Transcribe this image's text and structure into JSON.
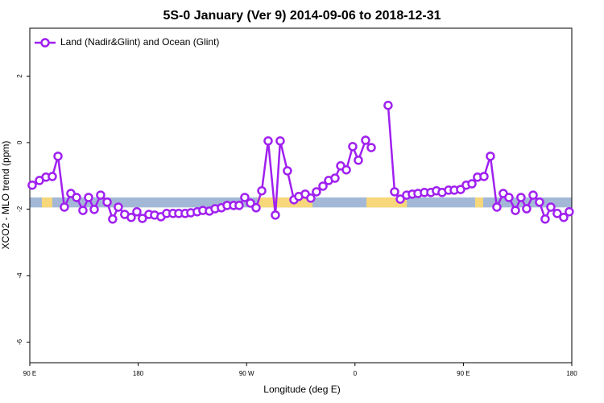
{
  "chart_data": {
    "type": "line",
    "title": "5S-0 January (Ver 9)   2014-09-06 to 2018-12-31",
    "x_label": "Longitude (deg E)",
    "y_label": "XCO2 - MLO trend (ppm)",
    "legend": "top-left",
    "x": [
      92.0,
      98.0,
      103.4,
      108.7,
      113.4,
      118.7,
      124.1,
      128.8,
      134.1,
      138.8,
      143.5,
      148.8,
      154.2,
      158.8,
      163.5,
      168.8,
      174.2,
      178.9,
      183.5,
      188.9,
      193.6,
      198.9,
      203.6,
      208.9,
      213.7,
      219.0,
      223.7,
      229.0,
      233.7,
      239.1,
      243.8,
      249.1,
      253.8,
      259.2,
      263.8,
      268.5,
      273.2,
      277.9,
      282.6,
      287.9,
      293.9,
      297.9,
      303.9,
      309.3,
      313.3,
      318.7,
      323.3,
      328.0,
      333.4,
      338.1,
      343.4,
      348.1,
      352.8,
      358.1,
      362.8,
      368.8,
      373.5,
      380.5,
      387.5,
      392.9,
      397.6,
      402.9,
      407.6,
      412.3,
      417.6,
      423.0,
      427.6,
      432.3,
      437.7,
      442.4,
      447.7,
      452.4,
      457.1,
      461.7,
      467.1,
      472.4,
      477.8,
      483.1,
      487.8,
      493.2,
      497.8,
      502.5,
      507.9,
      513.2,
      517.9,
      522.6,
      527.9,
      533.3,
      537.9
    ],
    "series": [
      {
        "name": "Land (Nadir&Glint) and Ocean (Glint)",
        "color": "#a020f0",
        "values": [
          -1.28,
          -1.14,
          -1.04,
          -1.02,
          -0.41,
          -1.94,
          -1.53,
          -1.65,
          -2.04,
          -1.65,
          -2.01,
          -1.58,
          -1.79,
          -2.3,
          -1.94,
          -2.16,
          -2.25,
          -2.08,
          -2.28,
          -2.16,
          -2.18,
          -2.23,
          -2.13,
          -2.13,
          -2.13,
          -2.13,
          -2.11,
          -2.08,
          -2.04,
          -2.06,
          -1.99,
          -1.96,
          -1.89,
          -1.89,
          -1.89,
          -1.65,
          -1.82,
          -1.96,
          -1.45,
          0.05,
          -2.18,
          0.05,
          -0.85,
          -1.72,
          -1.62,
          -1.55,
          -1.67,
          -1.48,
          -1.31,
          -1.14,
          -1.07,
          -0.7,
          -0.82,
          -0.12,
          -0.53,
          0.07,
          -0.15,
          null,
          1.12,
          -1.48,
          -1.7,
          -1.58,
          -1.55,
          -1.53,
          -1.5,
          -1.5,
          -1.45,
          -1.5,
          -1.43,
          -1.43,
          -1.41,
          -1.28,
          -1.24,
          -1.04,
          -1.02,
          -0.41,
          -1.94,
          -1.53,
          -1.65,
          -2.04,
          -1.65,
          -1.99,
          -1.58,
          -1.79,
          -2.3,
          -1.94,
          -2.13,
          -2.25,
          -2.08
        ]
      }
    ],
    "surface_band": {
      "y": [
        -1.95,
        -1.65
      ],
      "ocean_color": "#a3b8d6",
      "land_color": "#f7d77a",
      "land_ranges": [
        [
          100,
          108.7
        ],
        [
          279,
          324.7
        ],
        [
          369.5,
          403
        ],
        [
          459.7,
          466.4
        ]
      ]
    },
    "xlim": [
      90,
      540
    ],
    "xticks": [
      {
        "value": 90,
        "label": "90 E"
      },
      {
        "value": 180,
        "label": "180"
      },
      {
        "value": 270,
        "label": "90 W"
      },
      {
        "value": 360,
        "label": "0"
      },
      {
        "value": 450,
        "label": "90 E"
      },
      {
        "value": 540,
        "label": "180"
      }
    ],
    "ylim": [
      -6.62,
      3.44
    ],
    "yticks": [
      -6,
      -4,
      -2,
      0,
      2
    ]
  }
}
